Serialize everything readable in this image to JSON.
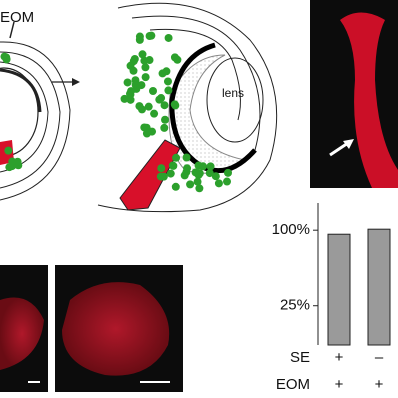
{
  "figure": {
    "labels": {
      "eom": "EOM",
      "lens": "lens"
    }
  },
  "chart_data": {
    "type": "bar",
    "categories": [
      null,
      null
    ],
    "values": [
      96,
      101
    ],
    "color": "#9a9a9a",
    "ylim": [
      -14,
      127
    ],
    "yticks": [
      {
        "value": 25,
        "label": "25%"
      },
      {
        "value": 100,
        "label": "100%"
      }
    ],
    "rows": [
      {
        "label": "SE",
        "values": [
          "+",
          "–"
        ]
      },
      {
        "label": "EOM",
        "values": [
          "+",
          "+"
        ]
      }
    ]
  }
}
